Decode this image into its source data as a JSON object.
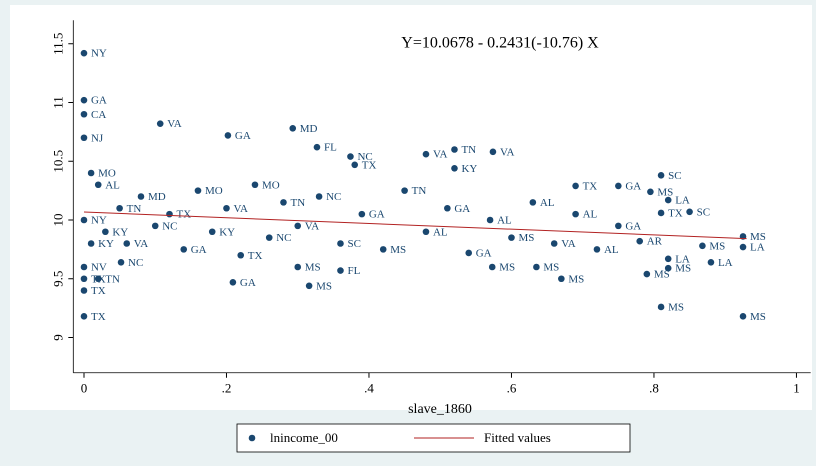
{
  "chart_data": {
    "type": "scatter",
    "annotation": "Y=10.0678 - 0.2431(-10.76) X",
    "x_label": "slave_1860",
    "xlim": [
      -0.015,
      1.02
    ],
    "ylim": [
      8.7,
      11.7
    ],
    "xticks": [
      {
        "value": 0,
        "label": "0"
      },
      {
        "value": 0.2,
        "label": ".2"
      },
      {
        "value": 0.4,
        "label": ".4"
      },
      {
        "value": 0.6,
        "label": ".6"
      },
      {
        "value": 0.8,
        "label": ".8"
      },
      {
        "value": 1,
        "label": "1"
      }
    ],
    "yticks": [
      9,
      9.5,
      10,
      10.5,
      11,
      11.5
    ],
    "grid": false,
    "series": [
      {
        "name": "lnincome_00",
        "color": "#1a476f",
        "x": [
          0,
          0,
          0,
          0.107,
          0.202,
          0.293,
          0.327,
          0.374,
          0.48,
          0.52,
          0.574,
          0.52,
          0.38,
          0.81,
          0.85,
          0.81,
          0.82,
          0.795,
          0.75,
          0.69,
          0.925,
          0.925,
          0.868,
          0.88,
          0.925,
          0.81,
          0.79,
          0.82,
          0.82,
          0.67,
          0.635,
          0.573,
          0.316,
          0.209,
          0.3,
          0.36,
          0.052,
          0,
          0,
          0.02,
          0.03,
          0.05,
          0.06,
          0.08,
          0.1,
          0.12,
          0.14,
          0.16,
          0.18,
          0.2,
          0.22,
          0.24,
          0.26,
          0.28,
          0.3,
          0.33,
          0.36,
          0.39,
          0.42,
          0.45,
          0.48,
          0.51,
          0.54,
          0.57,
          0.6,
          0.63,
          0.66,
          0.69,
          0.72,
          0.75,
          0.78,
          0,
          0,
          0.01,
          0,
          0.02,
          0,
          0.01
        ],
        "values": [
          11.42,
          9.18,
          11.02,
          10.82,
          10.72,
          10.78,
          10.62,
          10.54,
          10.56,
          10.6,
          10.58,
          10.44,
          10.47,
          10.38,
          10.07,
          10.06,
          10.17,
          10.24,
          10.29,
          10.29,
          9.86,
          9.77,
          9.78,
          9.64,
          9.18,
          9.26,
          9.54,
          9.67,
          9.59,
          9.5,
          9.6,
          9.6,
          9.44,
          9.47,
          9.6,
          9.57,
          9.64,
          9.4,
          9.5,
          10.3,
          9.9,
          10.1,
          9.8,
          10.2,
          9.95,
          10.05,
          9.75,
          10.25,
          9.9,
          10.1,
          9.7,
          10.3,
          9.85,
          10.15,
          9.95,
          10.2,
          9.8,
          10.05,
          9.75,
          10.25,
          9.9,
          10.1,
          9.72,
          10.0,
          9.85,
          10.15,
          9.8,
          10.05,
          9.75,
          9.95,
          9.82,
          10.7,
          10.9,
          10.4,
          9.6,
          9.5,
          10.0,
          9.8
        ],
        "labels": [
          "NY",
          "TX",
          "GA",
          "VA",
          "GA",
          "MD",
          "FL",
          "NC",
          "VA",
          "TN",
          "VA",
          "KY",
          "TX",
          "SC",
          "SC",
          "TX",
          "LA",
          "MS",
          "GA",
          "TX",
          "MS",
          "LA",
          "MS",
          "LA",
          "MS",
          "MS",
          "MS",
          "LA",
          "MS",
          "MS",
          "MS",
          "MS",
          "MS",
          "GA",
          "MS",
          "FL",
          "NC",
          "TX",
          "TX",
          "AL",
          "KY",
          "TN",
          "VA",
          "MD",
          "NC",
          "TX",
          "GA",
          "MO",
          "KY",
          "VA",
          "TX",
          "MO",
          "NC",
          "TN",
          "VA",
          "NC",
          "SC",
          "GA",
          "MS",
          "TN",
          "AL",
          "GA",
          "GA",
          "AL",
          "MS",
          "AL",
          "VA",
          "AL",
          "AL",
          "GA",
          "AR",
          "NJ",
          "CA",
          "MO",
          "NV",
          "TN",
          "NY",
          "KY"
        ]
      },
      {
        "name": "Fitted values",
        "color": "#b22222",
        "type": "line",
        "x": [
          0,
          0.93
        ],
        "values": [
          10.0678,
          9.8417
        ]
      }
    ]
  }
}
